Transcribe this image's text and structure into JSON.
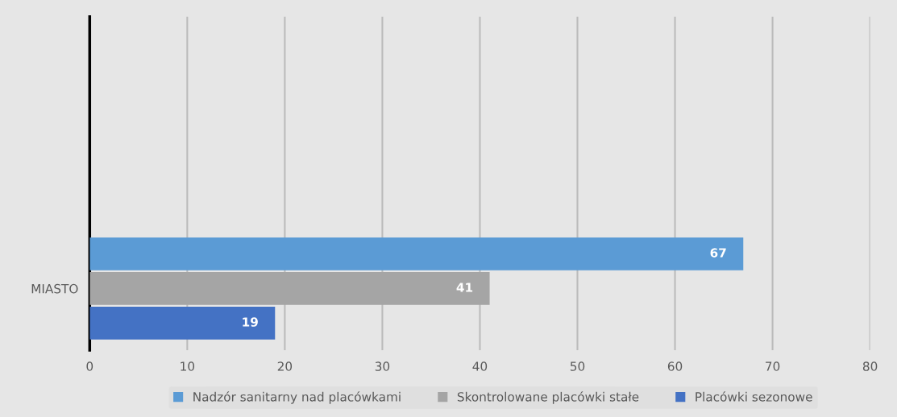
{
  "chart_data": {
    "type": "bar",
    "orientation": "horizontal",
    "categories": [
      "MIASTO"
    ],
    "series": [
      {
        "name": "Nadzór sanitarny nad placówkami",
        "color": "#5b9bd5",
        "values": [
          67
        ]
      },
      {
        "name": "Skontrolowane placówki stałe",
        "color": "#a5a5a5",
        "values": [
          41
        ]
      },
      {
        "name": "Placówki sezonowe",
        "color": "#4472c4",
        "values": [
          19
        ]
      }
    ],
    "xlim": [
      0,
      80
    ],
    "xticks": [
      0,
      10,
      20,
      30,
      40,
      50,
      60,
      70,
      80
    ],
    "grid": "x",
    "legend": "bottom",
    "data_labels": true
  }
}
